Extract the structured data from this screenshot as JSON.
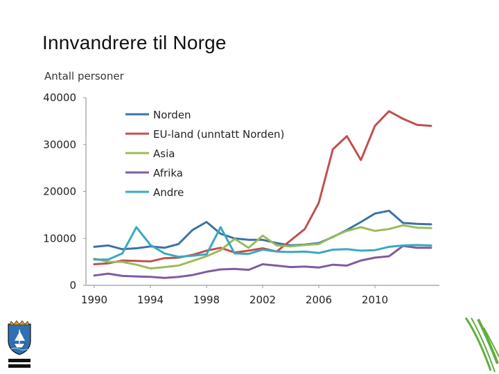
{
  "slide": {
    "title": "Innvandrere til Norge"
  },
  "chart_data": {
    "type": "line",
    "title": "",
    "xlabel": "",
    "ylabel": "Antall personer",
    "xlim": [
      1990,
      2014
    ],
    "ylim": [
      0,
      40000
    ],
    "x_ticks": [
      "1990",
      "1994",
      "1998",
      "2002",
      "2006",
      "2010"
    ],
    "y_ticks": [
      "0",
      "10000",
      "20000",
      "30000",
      "40000"
    ],
    "grid": false,
    "legend_position": "top-left",
    "x": [
      1990,
      1991,
      1992,
      1993,
      1994,
      1995,
      1996,
      1997,
      1998,
      1999,
      2000,
      2001,
      2002,
      2003,
      2004,
      2005,
      2006,
      2007,
      2008,
      2009,
      2010,
      2011,
      2012,
      2013,
      2014
    ],
    "series": [
      {
        "name": "Norden",
        "color": "#3b72a8",
        "values": [
          8200,
          8500,
          7700,
          7900,
          8300,
          8000,
          8800,
          11800,
          13500,
          11000,
          10000,
          9700,
          9700,
          9000,
          8500,
          8700,
          9000,
          10300,
          11800,
          13500,
          15300,
          15900,
          13300,
          13100,
          13000
        ]
      },
      {
        "name": "EU-land (unntatt Norden)",
        "color": "#c0504d",
        "values": [
          4500,
          4700,
          5300,
          5200,
          5100,
          5800,
          5900,
          6500,
          7400,
          8000,
          7000,
          7400,
          7900,
          7200,
          9600,
          12000,
          17600,
          29000,
          31800,
          26700,
          34000,
          37100,
          35500,
          34200,
          34000
        ]
      },
      {
        "name": "Asia",
        "color": "#9bbb59",
        "values": [
          5700,
          5000,
          5000,
          4400,
          3600,
          3900,
          4200,
          5200,
          6200,
          7500,
          9900,
          8000,
          10600,
          8500,
          8300,
          8600,
          8800,
          10400,
          11600,
          12400,
          11600,
          12000,
          12800,
          12300,
          12200
        ]
      },
      {
        "name": "Afrika",
        "color": "#7d5c9e",
        "values": [
          2100,
          2500,
          2000,
          1900,
          1800,
          1600,
          1800,
          2200,
          2900,
          3400,
          3500,
          3300,
          4500,
          4200,
          3900,
          4000,
          3800,
          4400,
          4200,
          5300,
          5900,
          6200,
          8400,
          8000,
          8000
        ]
      },
      {
        "name": "Andre",
        "color": "#3aa8c1",
        "values": [
          5500,
          5500,
          6800,
          12400,
          8600,
          6800,
          6100,
          6300,
          6600,
          12400,
          6800,
          6700,
          7600,
          7200,
          7100,
          7200,
          6900,
          7600,
          7700,
          7400,
          7500,
          8200,
          8500,
          8600,
          8500
        ]
      }
    ]
  }
}
